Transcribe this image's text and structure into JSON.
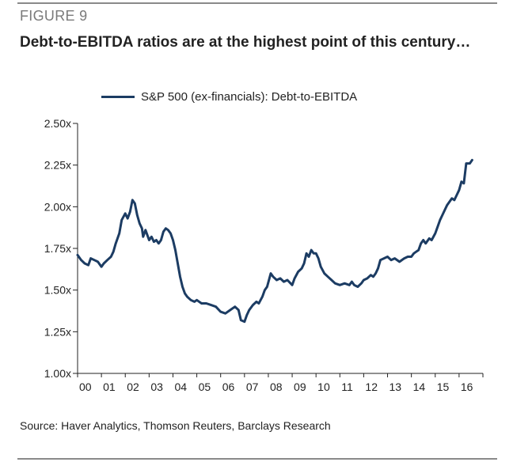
{
  "figure_label": "FIGURE 9",
  "title": "Debt-to-EBITDA ratios are at the highest point of this century…",
  "source": "Source: Haver Analytics, Thomson Reuters, Barclays Research",
  "colors": {
    "series": "#1c3c63",
    "axis": "#222222",
    "rule": "#8a8a8a"
  },
  "chart_data": {
    "type": "line",
    "title": "Debt-to-EBITDA ratios are at the highest point of this century…",
    "xlabel": "",
    "ylabel": "",
    "xlim": [
      2000,
      2016.6
    ],
    "ylim": [
      1.0,
      2.5
    ],
    "grid": false,
    "legend_position": "top",
    "x_tick_labels": [
      "00",
      "01",
      "02",
      "03",
      "04",
      "05",
      "06",
      "07",
      "08",
      "09",
      "10",
      "11",
      "12",
      "13",
      "14",
      "15",
      "16"
    ],
    "y_ticks": [
      1.0,
      1.25,
      1.5,
      1.75,
      2.0,
      2.25,
      2.5
    ],
    "y_tick_labels": [
      "1.00x",
      "1.25x",
      "1.50x",
      "1.75x",
      "2.00x",
      "2.25x",
      "2.50x"
    ],
    "series": [
      {
        "name": "S&P 500 (ex-financials): Debt-to-EBITDA",
        "x": [
          2000.0,
          2000.15,
          2000.3,
          2000.45,
          2000.55,
          2000.7,
          2000.85,
          2001.0,
          2001.1,
          2001.25,
          2001.4,
          2001.5,
          2001.6,
          2001.75,
          2001.85,
          2002.0,
          2002.1,
          2002.2,
          2002.3,
          2002.4,
          2002.5,
          2002.6,
          2002.7,
          2002.75,
          2002.85,
          2003.0,
          2003.1,
          2003.2,
          2003.3,
          2003.4,
          2003.5,
          2003.6,
          2003.7,
          2003.8,
          2003.9,
          2004.0,
          2004.1,
          2004.2,
          2004.3,
          2004.4,
          2004.5,
          2004.6,
          2004.75,
          2004.9,
          2005.0,
          2005.2,
          2005.4,
          2005.6,
          2005.8,
          2006.0,
          2006.2,
          2006.4,
          2006.6,
          2006.75,
          2006.85,
          2007.0,
          2007.1,
          2007.2,
          2007.35,
          2007.5,
          2007.6,
          2007.75,
          2007.85,
          2007.95,
          2008.1,
          2008.2,
          2008.35,
          2008.5,
          2008.65,
          2008.8,
          2009.0,
          2009.1,
          2009.25,
          2009.4,
          2009.5,
          2009.6,
          2009.7,
          2009.8,
          2009.9,
          2010.0,
          2010.1,
          2010.2,
          2010.35,
          2010.5,
          2010.65,
          2010.8,
          2011.0,
          2011.2,
          2011.4,
          2011.5,
          2011.6,
          2011.75,
          2011.9,
          2012.0,
          2012.15,
          2012.3,
          2012.4,
          2012.5,
          2012.6,
          2012.7,
          2012.85,
          2013.0,
          2013.15,
          2013.3,
          2013.5,
          2013.7,
          2013.85,
          2014.0,
          2014.1,
          2014.2,
          2014.3,
          2014.4,
          2014.5,
          2014.6,
          2014.75,
          2014.85,
          2015.0,
          2015.1,
          2015.2,
          2015.3,
          2015.4,
          2015.5,
          2015.6,
          2015.7,
          2015.8,
          2015.9,
          2016.0,
          2016.1,
          2016.2,
          2016.3,
          2016.45,
          2016.55
        ],
        "values": [
          1.71,
          1.68,
          1.66,
          1.65,
          1.69,
          1.68,
          1.67,
          1.64,
          1.66,
          1.68,
          1.7,
          1.73,
          1.78,
          1.84,
          1.92,
          1.96,
          1.93,
          1.97,
          2.04,
          2.02,
          1.95,
          1.9,
          1.87,
          1.82,
          1.86,
          1.8,
          1.82,
          1.79,
          1.8,
          1.78,
          1.8,
          1.85,
          1.87,
          1.86,
          1.84,
          1.8,
          1.74,
          1.66,
          1.58,
          1.52,
          1.48,
          1.46,
          1.44,
          1.43,
          1.44,
          1.42,
          1.42,
          1.41,
          1.4,
          1.37,
          1.36,
          1.38,
          1.4,
          1.38,
          1.32,
          1.31,
          1.35,
          1.38,
          1.41,
          1.43,
          1.42,
          1.46,
          1.5,
          1.52,
          1.6,
          1.58,
          1.56,
          1.57,
          1.55,
          1.56,
          1.53,
          1.57,
          1.61,
          1.63,
          1.66,
          1.72,
          1.7,
          1.74,
          1.72,
          1.72,
          1.69,
          1.64,
          1.6,
          1.58,
          1.56,
          1.54,
          1.53,
          1.54,
          1.53,
          1.55,
          1.53,
          1.52,
          1.54,
          1.56,
          1.57,
          1.59,
          1.58,
          1.6,
          1.63,
          1.68,
          1.69,
          1.7,
          1.68,
          1.69,
          1.67,
          1.69,
          1.7,
          1.7,
          1.72,
          1.73,
          1.74,
          1.78,
          1.8,
          1.78,
          1.81,
          1.8,
          1.84,
          1.88,
          1.92,
          1.95,
          1.98,
          2.01,
          2.03,
          2.05,
          2.04,
          2.07,
          2.1,
          2.15,
          2.14,
          2.26,
          2.26,
          2.28
        ]
      }
    ]
  }
}
